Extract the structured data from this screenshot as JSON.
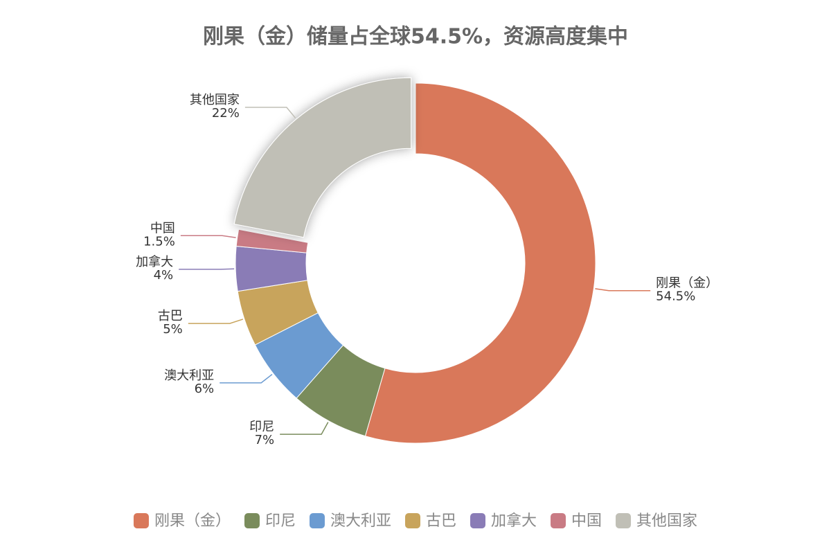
{
  "chart_data": {
    "type": "donut",
    "title": "刚果（金）储量占全球54.5%，资源高度集中",
    "categories": [
      "刚果（金）",
      "印尼",
      "澳大利亚",
      "古巴",
      "加拿大",
      "中国",
      "其他国家"
    ],
    "values": [
      54.5,
      7,
      6,
      5,
      4,
      1.5,
      22
    ],
    "value_labels": [
      "54.5%",
      "7%",
      "6%",
      "5%",
      "4%",
      "1.5%",
      "22%"
    ],
    "colors": [
      "#d9785a",
      "#7a8c5c",
      "#6b9bd1",
      "#c8a45c",
      "#8a7cb6",
      "#c97b84",
      "#c0bfb6"
    ],
    "legend": "bottom"
  }
}
